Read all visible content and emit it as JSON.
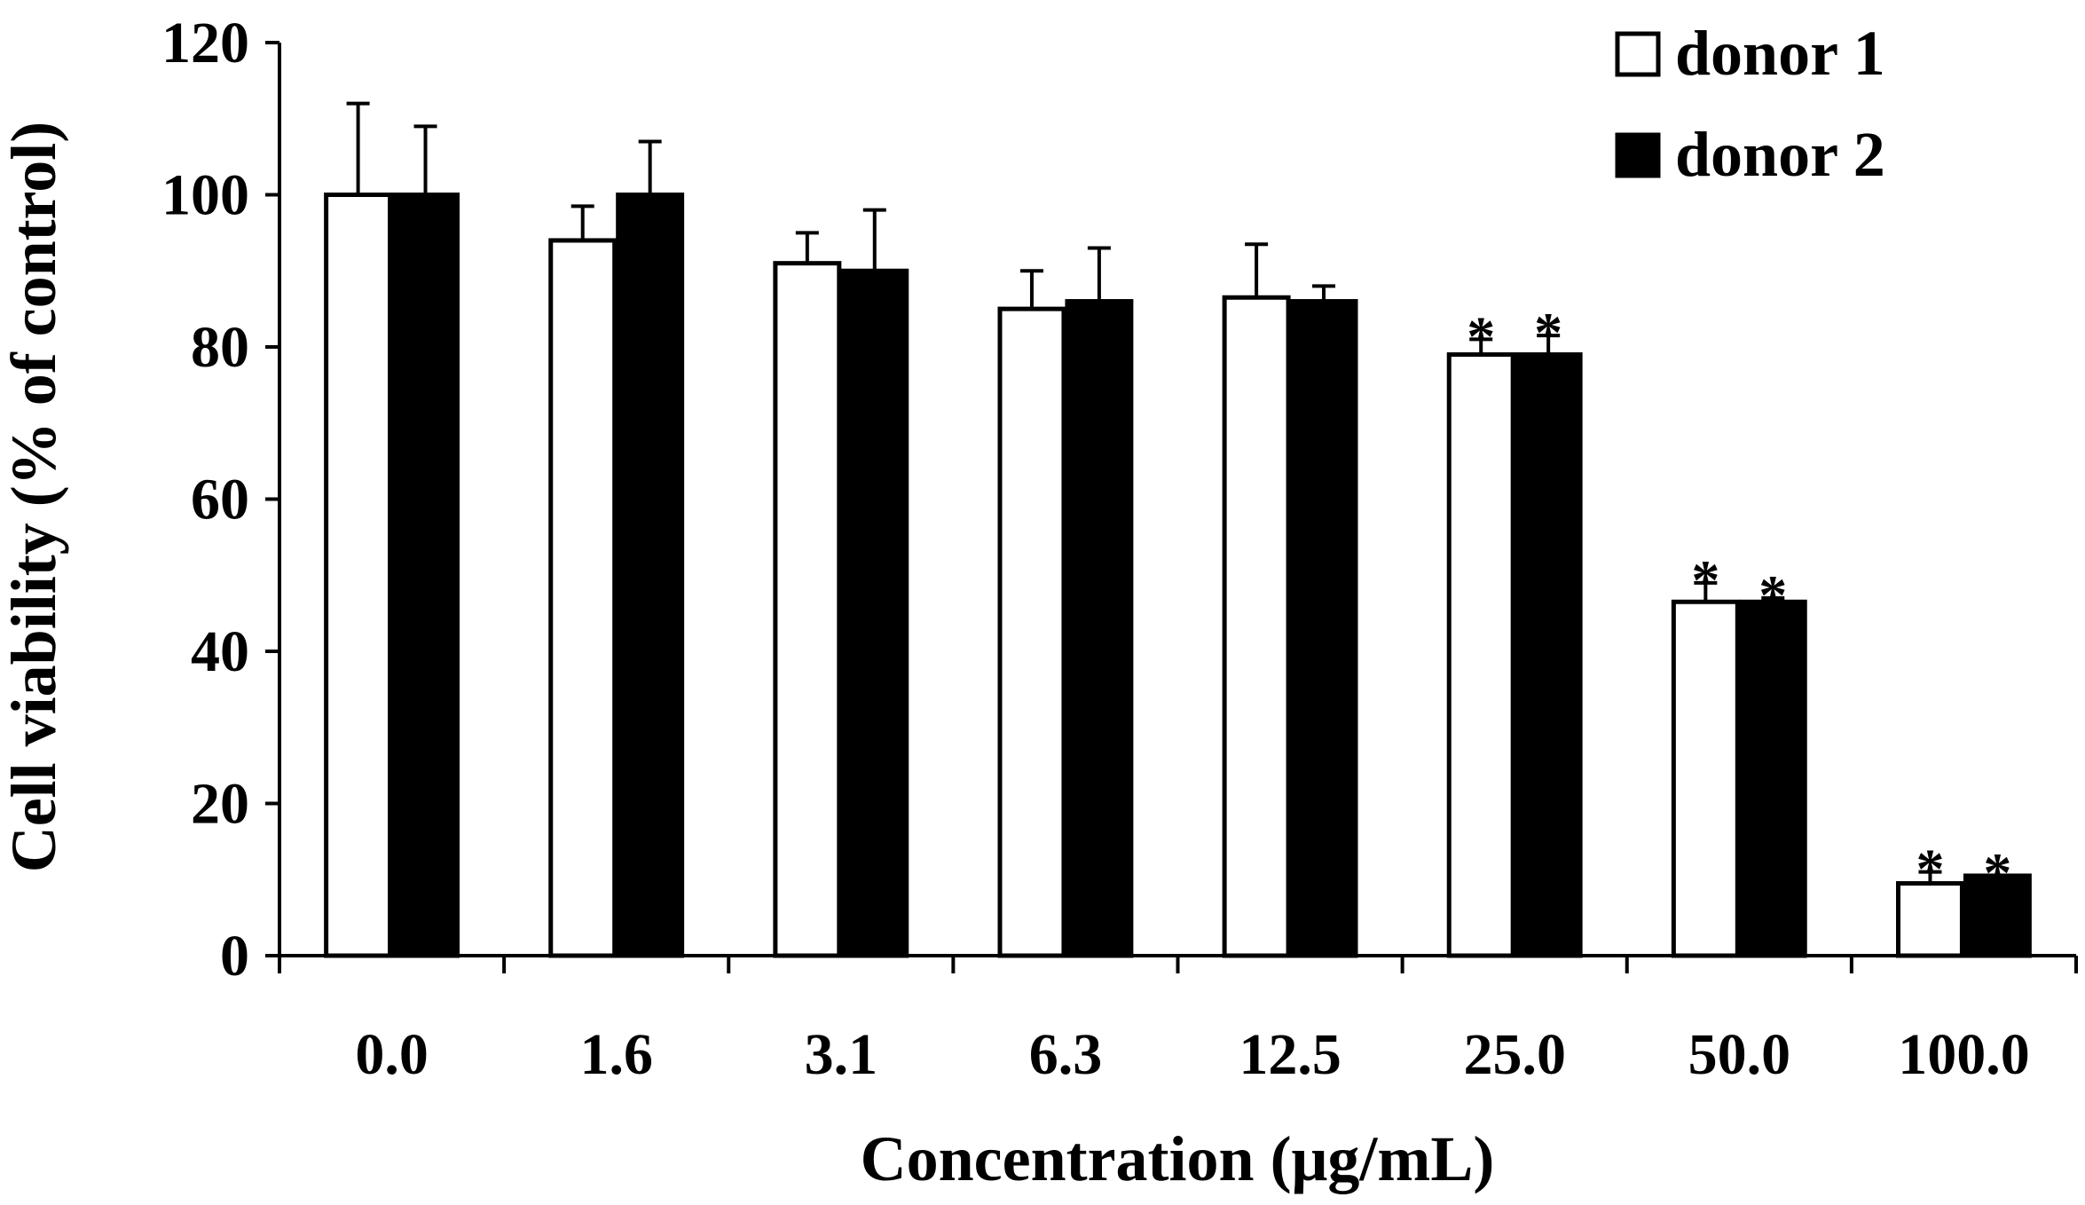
{
  "chart_data": {
    "type": "bar",
    "title": "",
    "xlabel": "Concentration (μg/mL)",
    "ylabel": "Cell viability (% of control)",
    "ylim": [
      0,
      120
    ],
    "yticks": [
      "0",
      "20",
      "40",
      "60",
      "80",
      "100",
      "120"
    ],
    "categories": [
      "0.0",
      "1.6",
      "3.1",
      "6.3",
      "12.5",
      "25.0",
      "50.0",
      "100.0"
    ],
    "series": [
      {
        "name": "donor 1",
        "fill": "#ffffff",
        "values": [
          100,
          94,
          91,
          85,
          86.5,
          79,
          46.5,
          9.5
        ],
        "errors": [
          12,
          4.5,
          4,
          5,
          7,
          2,
          2.5,
          1.5
        ],
        "significant": [
          false,
          false,
          false,
          false,
          false,
          true,
          true,
          true
        ]
      },
      {
        "name": "donor 2",
        "fill": "#000000",
        "values": [
          100,
          100,
          90,
          86,
          86,
          79,
          46.5,
          10.5
        ],
        "errors": [
          9,
          7,
          8,
          7,
          2,
          2.5,
          0.5,
          0
        ],
        "significant": [
          false,
          false,
          false,
          false,
          false,
          true,
          true,
          true
        ]
      }
    ],
    "significance_marker": "*",
    "legend": {
      "position": "top-right"
    }
  }
}
